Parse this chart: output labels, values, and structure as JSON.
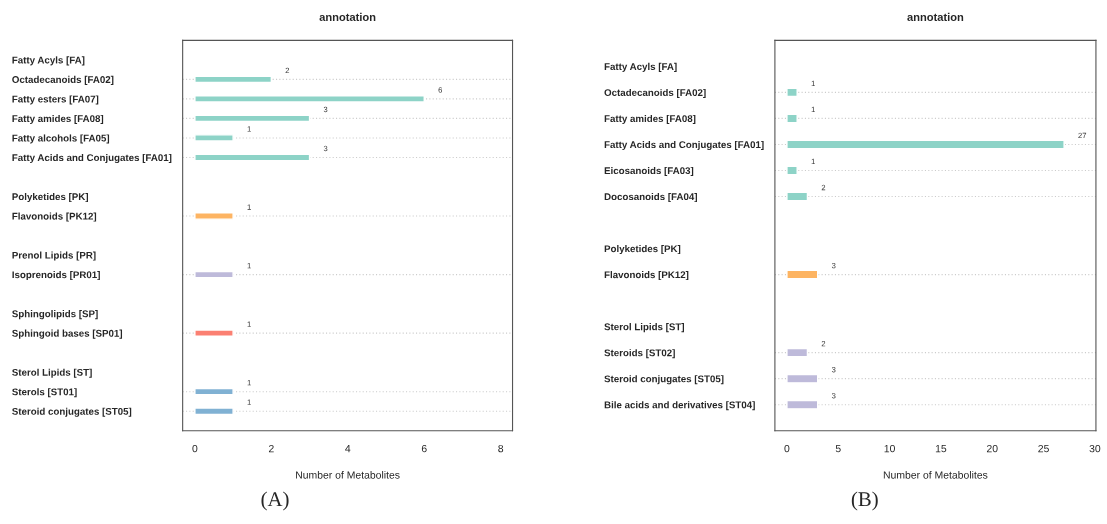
{
  "chart_data": [
    {
      "type": "bar",
      "orientation": "horizontal",
      "title": "annotation",
      "xlabel": "Number of Metabolites",
      "categories": [
        "Fatty Acyls [FA]",
        "Octadecanoids [FA02]",
        "Fatty esters [FA07]",
        "Fatty amides [FA08]",
        "Fatty alcohols [FA05]",
        "Fatty Acids and Conjugates [FA01]",
        null,
        "Polyketides [PK]",
        "Flavonoids [PK12]",
        null,
        "Prenol Lipids [PR]",
        "Isoprenoids [PR01]",
        null,
        "Sphingolipids [SP]",
        "Sphingoid bases [SP01]",
        null,
        "Sterol Lipids [ST]",
        "Sterols [ST01]",
        "Steroid conjugates [ST05]"
      ],
      "values": [
        null,
        2,
        6,
        3,
        1,
        3,
        null,
        null,
        1,
        null,
        null,
        1,
        null,
        null,
        1,
        null,
        null,
        1,
        1
      ],
      "colors": [
        "#8dd3c7",
        "#8dd3c7",
        "#8dd3c7",
        "#8dd3c7",
        "#8dd3c7",
        "#8dd3c7",
        "#8dd3c7",
        "#fdb462",
        "#fdb462",
        "#bebada",
        "#bebada",
        "#bebada",
        "#fb8072",
        "#fb8072",
        "#fb8072",
        "#80b1d3",
        "#80b1d3",
        "#80b1d3",
        "#80b1d3"
      ],
      "xlim": [
        -0.32,
        8.31
      ],
      "xticks": [
        0,
        2,
        4,
        6,
        8
      ],
      "grid": "y",
      "data_labels": true,
      "annotations": [
        "(A)"
      ]
    },
    {
      "type": "bar",
      "orientation": "horizontal",
      "title": "annotation",
      "xlabel": "Number of Metabolites",
      "categories": [
        "Fatty Acyls [FA]",
        "Octadecanoids [FA02]",
        "Fatty amides [FA08]",
        "Fatty Acids and Conjugates [FA01]",
        "Eicosanoids [FA03]",
        "Docosanoids [FA04]",
        null,
        "Polyketides [PK]",
        "Flavonoids [PK12]",
        null,
        "Sterol Lipids [ST]",
        "Steroids [ST02]",
        "Steroid conjugates [ST05]",
        "Bile acids and derivatives [ST04]"
      ],
      "values": [
        null,
        1,
        1,
        27,
        1,
        2,
        null,
        null,
        3,
        null,
        null,
        2,
        3,
        3
      ],
      "colors": [
        "#8dd3c7",
        "#8dd3c7",
        "#8dd3c7",
        "#8dd3c7",
        "#8dd3c7",
        "#8dd3c7",
        "#8dd3c7",
        "#fdb462",
        "#fdb462",
        "#bebada",
        "#bebada",
        "#bebada",
        "#bebada",
        "#bebada"
      ],
      "xlim": [
        -1.17,
        30.1
      ],
      "xticks": [
        0,
        5,
        10,
        15,
        20,
        25,
        30
      ],
      "grid": "y",
      "data_labels": true,
      "annotations": [
        "(B)"
      ]
    }
  ]
}
